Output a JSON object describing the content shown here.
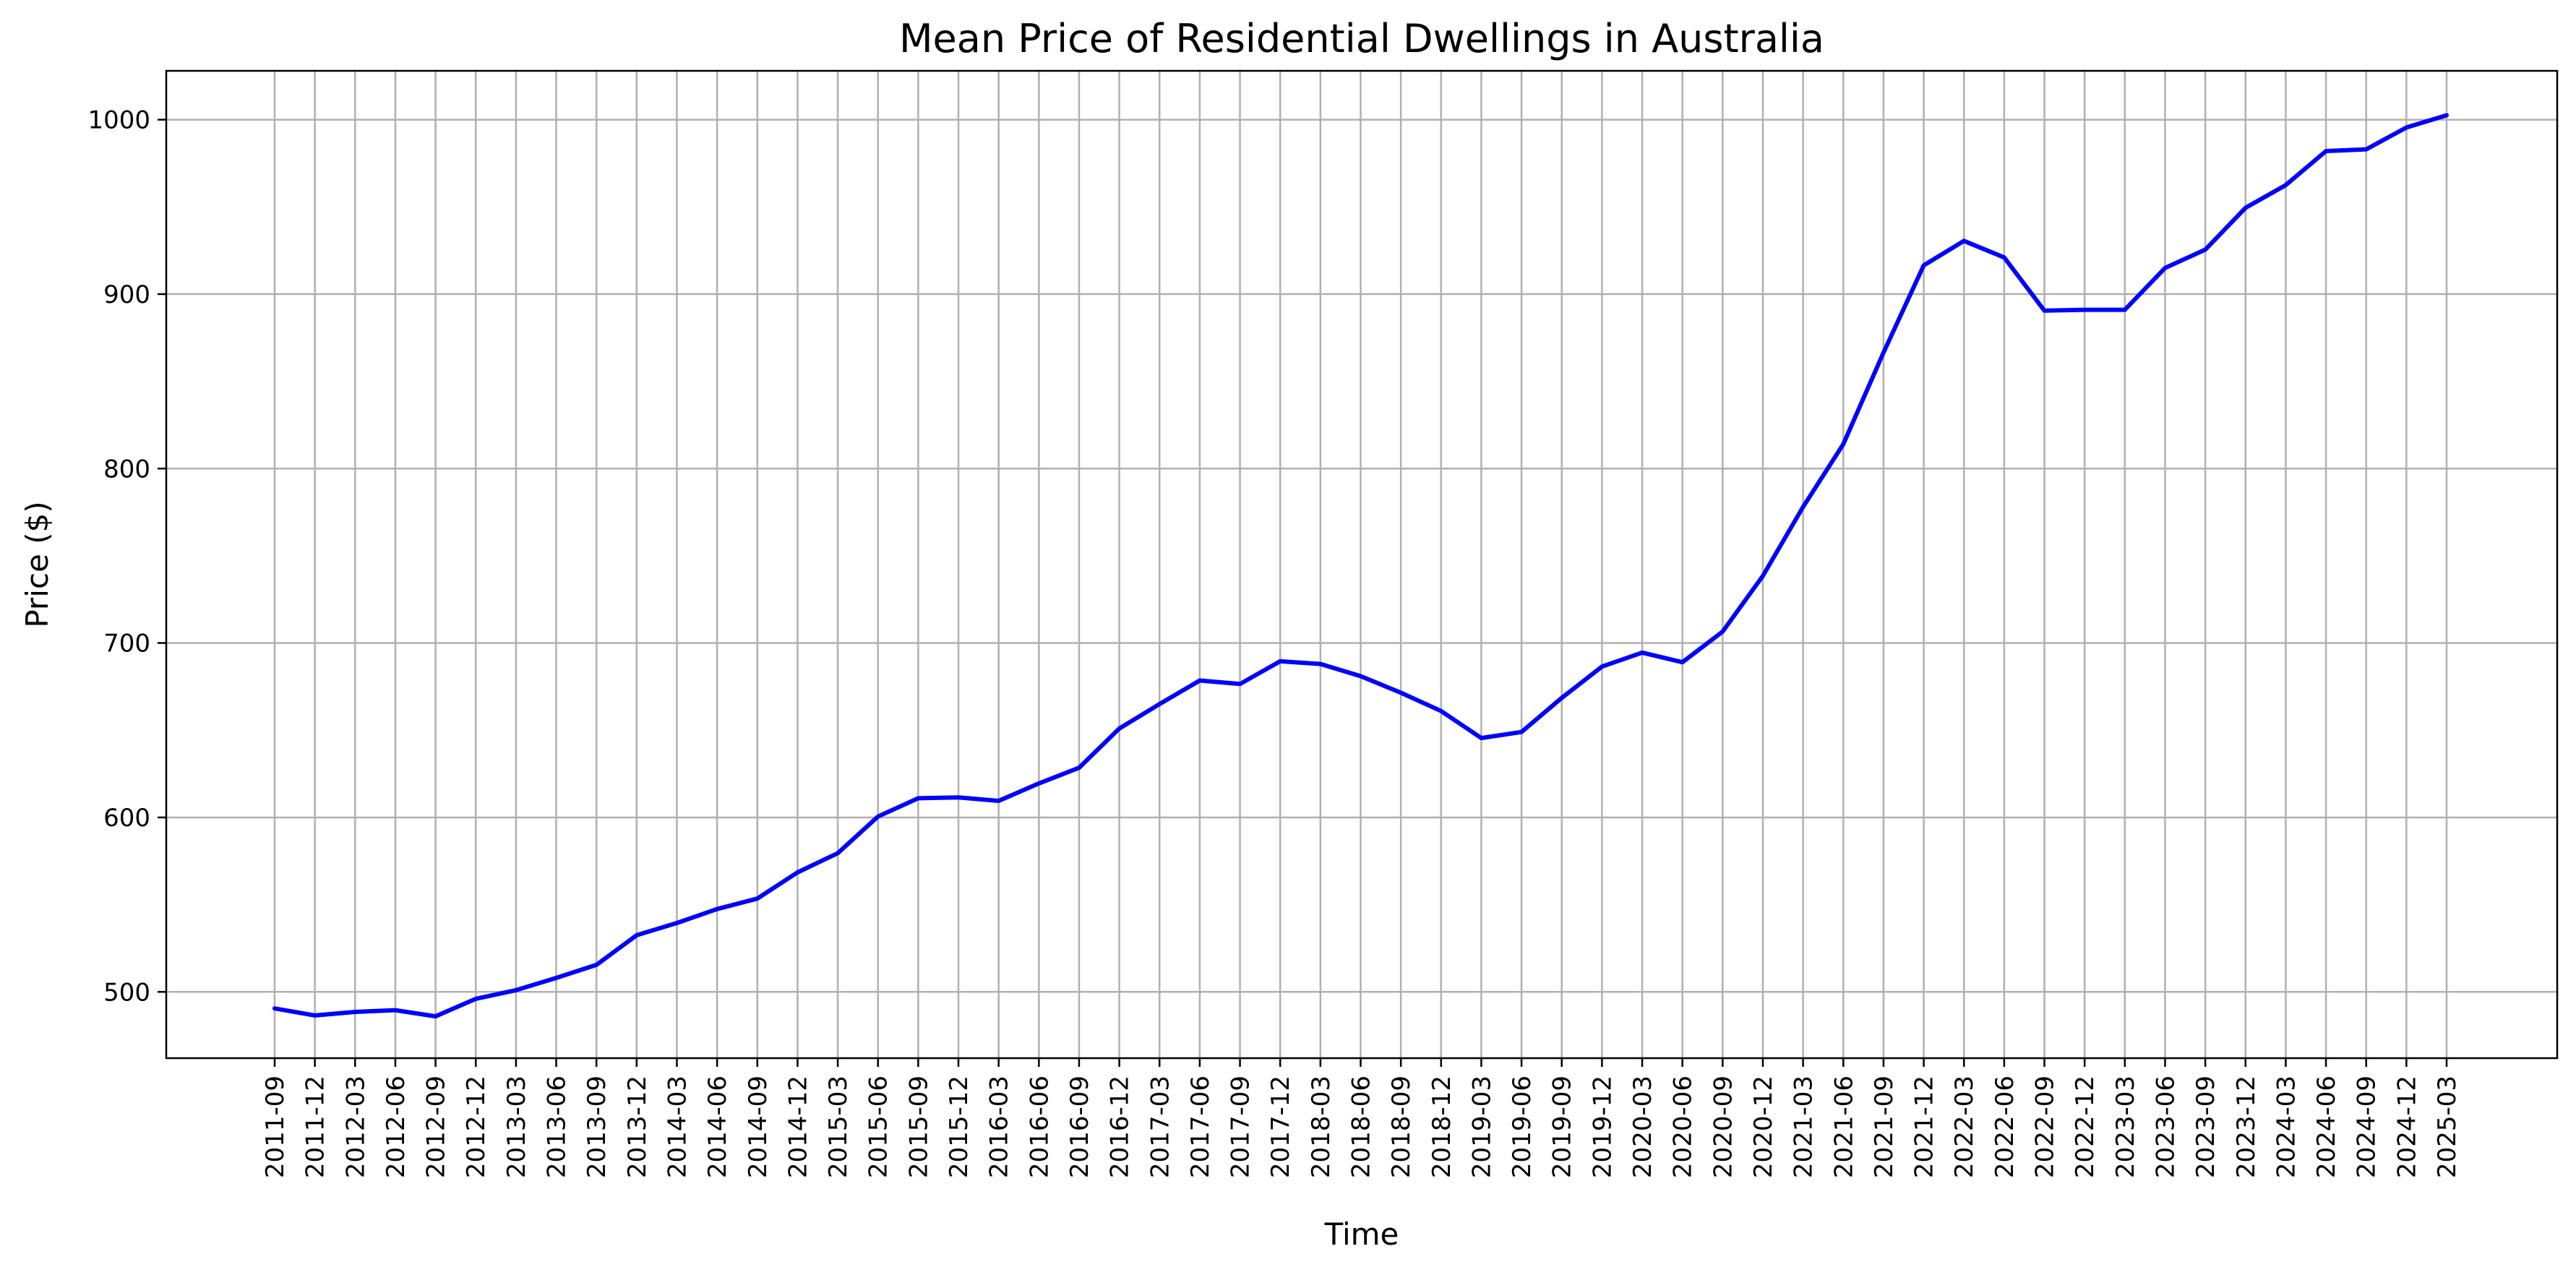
{
  "chart_data": {
    "type": "line",
    "title": "Mean Price of Residential Dwellings in Australia",
    "xlabel": "Time",
    "ylabel": "Price ($)",
    "ylim": [
      462,
      1028
    ],
    "yticks": [
      500,
      600,
      700,
      800,
      900,
      1000
    ],
    "grid": true,
    "line_color": "#0000ff",
    "categories": [
      "2011-09",
      "2011-12",
      "2012-03",
      "2012-06",
      "2012-09",
      "2012-12",
      "2013-03",
      "2013-06",
      "2013-09",
      "2013-12",
      "2014-03",
      "2014-06",
      "2014-09",
      "2014-12",
      "2015-03",
      "2015-06",
      "2015-09",
      "2015-12",
      "2016-03",
      "2016-06",
      "2016-09",
      "2016-12",
      "2017-03",
      "2017-06",
      "2017-09",
      "2017-12",
      "2018-03",
      "2018-06",
      "2018-09",
      "2018-12",
      "2019-03",
      "2019-06",
      "2019-09",
      "2019-12",
      "2020-03",
      "2020-06",
      "2020-09",
      "2020-12",
      "2021-03",
      "2021-06",
      "2021-09",
      "2021-12",
      "2022-03",
      "2022-06",
      "2022-09",
      "2022-12",
      "2023-03",
      "2023-06",
      "2023-09",
      "2023-12",
      "2024-03",
      "2024-06",
      "2024-09",
      "2024-12",
      "2025-03"
    ],
    "series": [
      {
        "values": [
          490.5,
          486.5,
          488.5,
          489.5,
          486.0,
          496.0,
          501.0,
          508.0,
          515.5,
          532.5,
          539.5,
          547.5,
          553.5,
          568.5,
          579.5,
          600.5,
          611.0,
          611.5,
          609.5,
          619.5,
          628.5,
          651.0,
          665.0,
          678.5,
          676.5,
          689.5,
          688.0,
          681.0,
          671.5,
          661.0,
          645.5,
          649.0,
          668.5,
          686.5,
          694.5,
          689.0,
          706.5,
          738.5,
          778.0,
          814.0,
          866.5,
          916.5,
          930.5,
          921.0,
          890.5,
          891.0,
          891.0,
          915.0,
          925.5,
          949.5,
          962.5,
          982.0,
          983.0,
          995.5,
          1002.5
        ]
      }
    ]
  }
}
